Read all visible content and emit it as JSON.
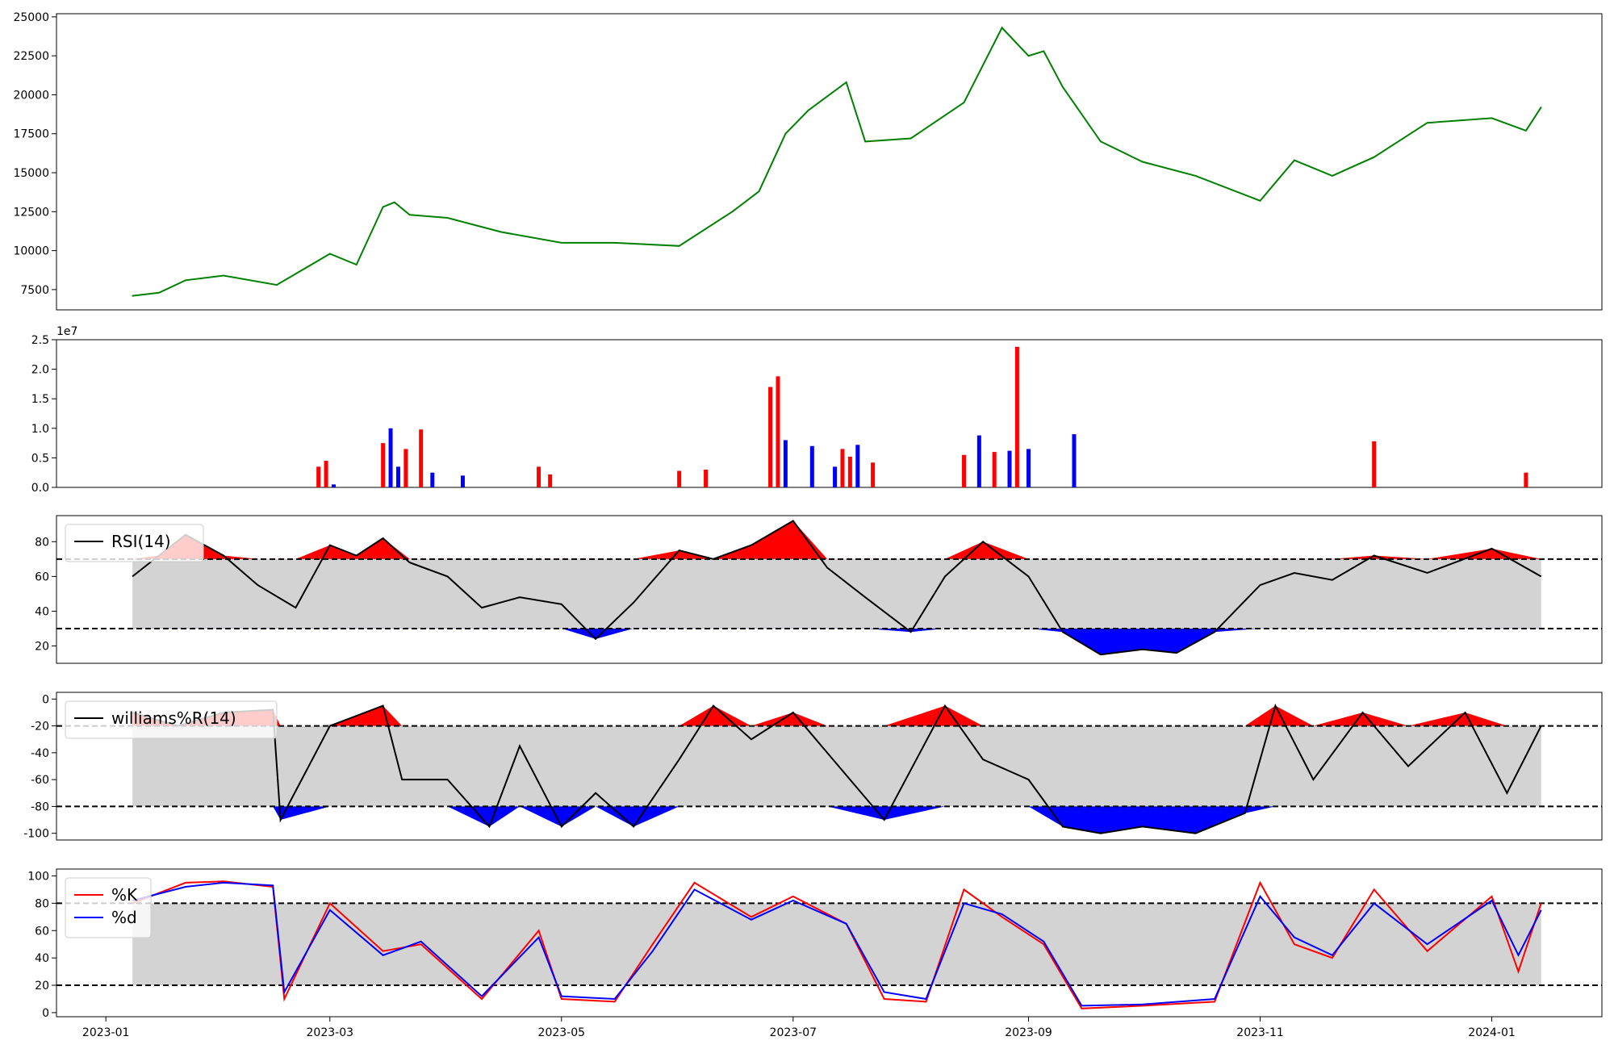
{
  "chart_data": [
    {
      "type": "line",
      "panel": "price",
      "ylim": [
        6200,
        25200
      ],
      "yticks": [
        7500,
        10000,
        12500,
        15000,
        17500,
        20000,
        22500,
        25000
      ],
      "line_color": "#008000",
      "x": [
        "2023-01-08",
        "2023-01-15",
        "2023-01-22",
        "2023-02-01",
        "2023-02-15",
        "2023-03-01",
        "2023-03-08",
        "2023-03-15",
        "2023-03-18",
        "2023-03-22",
        "2023-04-01",
        "2023-04-15",
        "2023-05-01",
        "2023-05-15",
        "2023-06-01",
        "2023-06-15",
        "2023-06-22",
        "2023-06-29",
        "2023-07-05",
        "2023-07-15",
        "2023-07-20",
        "2023-08-01",
        "2023-08-15",
        "2023-08-25",
        "2023-09-01",
        "2023-09-05",
        "2023-09-10",
        "2023-09-20",
        "2023-10-01",
        "2023-10-15",
        "2023-11-01",
        "2023-11-10",
        "2023-11-20",
        "2023-12-01",
        "2023-12-15",
        "2024-01-01",
        "2024-01-10",
        "2024-01-14"
      ],
      "values": [
        7100,
        7300,
        8100,
        8400,
        7800,
        9800,
        9100,
        12800,
        13100,
        12300,
        12100,
        11200,
        10500,
        10500,
        10300,
        12500,
        13800,
        17500,
        19000,
        20800,
        17000,
        17200,
        19500,
        24300,
        22500,
        22800,
        20500,
        17000,
        15700,
        14800,
        13200,
        15800,
        14800,
        16000,
        18200,
        18500,
        17700,
        19200
      ]
    },
    {
      "type": "bar",
      "panel": "volume",
      "scale_label": "1e7",
      "ylim": [
        0,
        2.5
      ],
      "yticks": [
        0.0,
        0.5,
        1.0,
        1.5,
        2.0,
        2.5
      ],
      "colors": {
        "up": "#ff0000",
        "down": "#0000ff",
        "flat": "#000000"
      },
      "bars": [
        {
          "x": "2023-02-26",
          "v": 0.35,
          "c": "up"
        },
        {
          "x": "2023-02-28",
          "v": 0.45,
          "c": "up"
        },
        {
          "x": "2023-03-02",
          "v": 0.05,
          "c": "down"
        },
        {
          "x": "2023-03-15",
          "v": 0.75,
          "c": "up"
        },
        {
          "x": "2023-03-17",
          "v": 1.0,
          "c": "down"
        },
        {
          "x": "2023-03-19",
          "v": 0.35,
          "c": "down"
        },
        {
          "x": "2023-03-21",
          "v": 0.65,
          "c": "up"
        },
        {
          "x": "2023-03-25",
          "v": 0.98,
          "c": "up"
        },
        {
          "x": "2023-03-28",
          "v": 0.25,
          "c": "down"
        },
        {
          "x": "2023-04-05",
          "v": 0.2,
          "c": "down"
        },
        {
          "x": "2023-04-25",
          "v": 0.35,
          "c": "up"
        },
        {
          "x": "2023-04-28",
          "v": 0.22,
          "c": "up"
        },
        {
          "x": "2023-06-01",
          "v": 0.28,
          "c": "up"
        },
        {
          "x": "2023-06-08",
          "v": 0.3,
          "c": "up"
        },
        {
          "x": "2023-06-25",
          "v": 1.7,
          "c": "up"
        },
        {
          "x": "2023-06-27",
          "v": 1.88,
          "c": "up"
        },
        {
          "x": "2023-06-29",
          "v": 0.8,
          "c": "down"
        },
        {
          "x": "2023-07-06",
          "v": 0.7,
          "c": "down"
        },
        {
          "x": "2023-07-12",
          "v": 0.35,
          "c": "down"
        },
        {
          "x": "2023-07-14",
          "v": 0.65,
          "c": "up"
        },
        {
          "x": "2023-07-16",
          "v": 0.52,
          "c": "up"
        },
        {
          "x": "2023-07-18",
          "v": 0.72,
          "c": "down"
        },
        {
          "x": "2023-07-22",
          "v": 0.42,
          "c": "up"
        },
        {
          "x": "2023-08-15",
          "v": 0.55,
          "c": "up"
        },
        {
          "x": "2023-08-19",
          "v": 0.88,
          "c": "down"
        },
        {
          "x": "2023-08-23",
          "v": 0.6,
          "c": "up"
        },
        {
          "x": "2023-08-27",
          "v": 0.62,
          "c": "down"
        },
        {
          "x": "2023-08-29",
          "v": 2.38,
          "c": "up"
        },
        {
          "x": "2023-09-01",
          "v": 0.65,
          "c": "down"
        },
        {
          "x": "2023-09-13",
          "v": 0.9,
          "c": "down"
        },
        {
          "x": "2023-12-01",
          "v": 0.78,
          "c": "up"
        },
        {
          "x": "2024-01-10",
          "v": 0.25,
          "c": "up"
        }
      ]
    },
    {
      "type": "line",
      "panel": "rsi",
      "ylim": [
        10,
        95
      ],
      "yticks": [
        20,
        40,
        60,
        80
      ],
      "legend": [
        "RSI(14)"
      ],
      "bands": [
        70,
        30
      ],
      "x": [
        "2023-01-08",
        "2023-01-15",
        "2023-01-22",
        "2023-02-01",
        "2023-02-10",
        "2023-02-20",
        "2023-03-01",
        "2023-03-08",
        "2023-03-15",
        "2023-03-22",
        "2023-04-01",
        "2023-04-10",
        "2023-04-20",
        "2023-05-01",
        "2023-05-10",
        "2023-05-20",
        "2023-06-01",
        "2023-06-10",
        "2023-06-20",
        "2023-07-01",
        "2023-07-10",
        "2023-07-20",
        "2023-08-01",
        "2023-08-10",
        "2023-08-20",
        "2023-09-01",
        "2023-09-10",
        "2023-09-20",
        "2023-10-01",
        "2023-10-10",
        "2023-10-20",
        "2023-11-01",
        "2023-11-10",
        "2023-11-20",
        "2023-12-01",
        "2023-12-15",
        "2024-01-01",
        "2024-01-14"
      ],
      "values": [
        60,
        72,
        84,
        72,
        55,
        42,
        78,
        72,
        82,
        68,
        60,
        42,
        48,
        44,
        24,
        45,
        75,
        70,
        78,
        92,
        65,
        48,
        28,
        60,
        80,
        60,
        28,
        15,
        18,
        16,
        28,
        55,
        62,
        58,
        72,
        62,
        76,
        60
      ]
    },
    {
      "type": "line",
      "panel": "williams",
      "ylim": [
        -105,
        5
      ],
      "yticks": [
        0,
        -20,
        -40,
        -60,
        -80,
        -100
      ],
      "legend": [
        "williams%R(14)"
      ],
      "bands": [
        -20,
        -80
      ],
      "x": [
        "2023-01-08",
        "2023-01-20",
        "2023-02-01",
        "2023-02-14",
        "2023-02-16",
        "2023-03-01",
        "2023-03-15",
        "2023-03-20",
        "2023-04-01",
        "2023-04-12",
        "2023-04-20",
        "2023-05-01",
        "2023-05-10",
        "2023-05-20",
        "2023-06-01",
        "2023-06-10",
        "2023-06-20",
        "2023-07-01",
        "2023-07-10",
        "2023-07-25",
        "2023-08-10",
        "2023-08-20",
        "2023-09-01",
        "2023-09-10",
        "2023-09-20",
        "2023-10-01",
        "2023-10-15",
        "2023-10-28",
        "2023-11-05",
        "2023-11-15",
        "2023-11-28",
        "2023-12-10",
        "2023-12-25",
        "2024-01-05",
        "2024-01-14"
      ],
      "values": [
        -10,
        -20,
        -10,
        -8,
        -90,
        -20,
        -5,
        -60,
        -60,
        -95,
        -35,
        -95,
        -70,
        -95,
        -45,
        -5,
        -30,
        -10,
        -40,
        -90,
        -5,
        -45,
        -60,
        -95,
        -100,
        -95,
        -100,
        -85,
        -5,
        -60,
        -10,
        -50,
        -10,
        -70,
        -20
      ]
    },
    {
      "type": "line",
      "panel": "stochastic",
      "ylim": [
        -3,
        105
      ],
      "yticks": [
        0,
        20,
        40,
        60,
        80,
        100
      ],
      "legend": [
        "%K",
        "%d"
      ],
      "bands": [
        80,
        20
      ],
      "x": [
        "2023-01-08",
        "2023-01-22",
        "2023-02-01",
        "2023-02-14",
        "2023-02-17",
        "2023-03-01",
        "2023-03-15",
        "2023-03-25",
        "2023-04-10",
        "2023-04-25",
        "2023-05-01",
        "2023-05-15",
        "2023-05-25",
        "2023-06-05",
        "2023-06-20",
        "2023-07-01",
        "2023-07-15",
        "2023-07-25",
        "2023-08-05",
        "2023-08-15",
        "2023-08-25",
        "2023-09-05",
        "2023-09-15",
        "2023-10-01",
        "2023-10-20",
        "2023-11-01",
        "2023-11-10",
        "2023-11-20",
        "2023-12-01",
        "2023-12-15",
        "2024-01-01",
        "2024-01-08",
        "2024-01-14"
      ],
      "k": [
        80,
        95,
        96,
        92,
        10,
        80,
        45,
        50,
        10,
        60,
        10,
        8,
        50,
        95,
        70,
        85,
        65,
        10,
        8,
        90,
        70,
        50,
        3,
        5,
        8,
        95,
        50,
        40,
        90,
        45,
        85,
        30,
        80
      ],
      "d": [
        82,
        92,
        95,
        93,
        15,
        75,
        42,
        52,
        12,
        55,
        12,
        10,
        45,
        90,
        68,
        82,
        65,
        15,
        10,
        80,
        72,
        52,
        5,
        6,
        10,
        85,
        55,
        42,
        80,
        50,
        82,
        42,
        75
      ]
    }
  ],
  "x_axis": {
    "ticks": [
      "2023-01",
      "2023-03",
      "2023-05",
      "2023-07",
      "2023-09",
      "2023-11",
      "2024-01"
    ]
  }
}
